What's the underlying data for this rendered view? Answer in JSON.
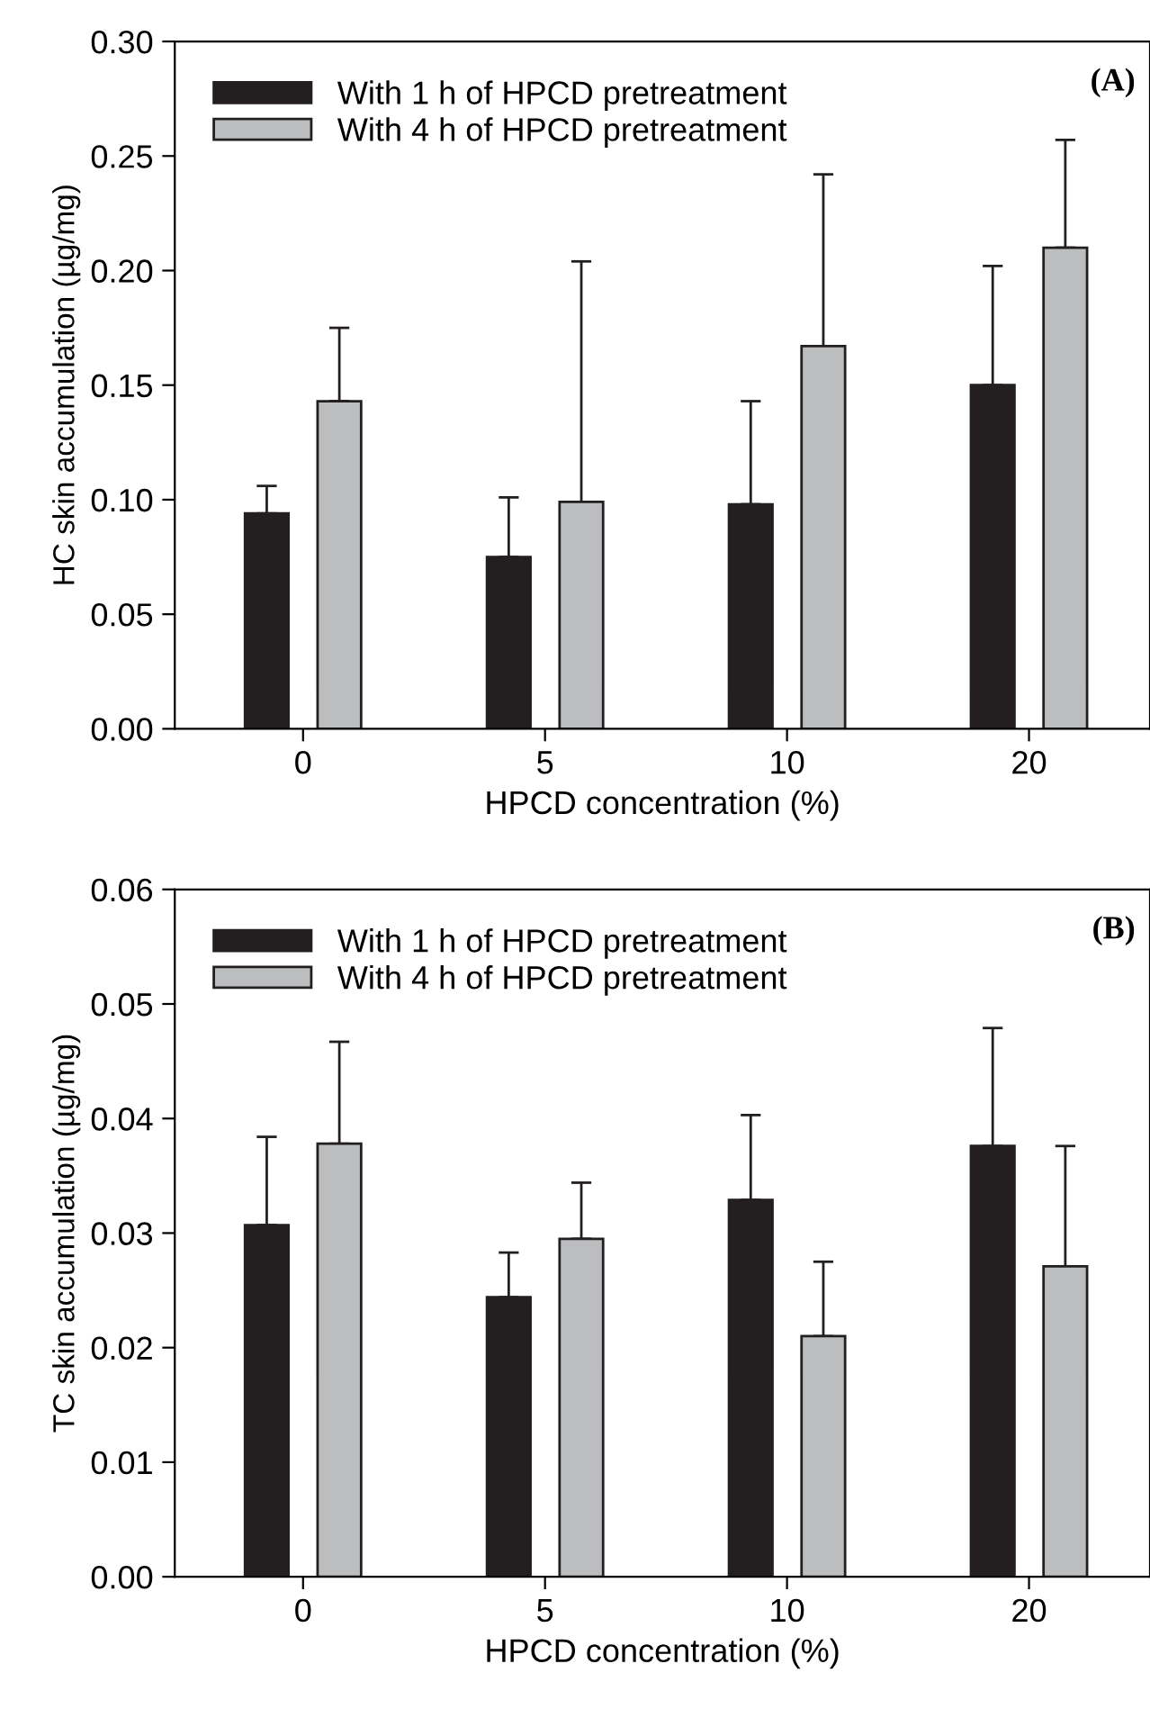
{
  "chart_data": [
    {
      "type": "bar",
      "categories": [
        "0",
        "5",
        "10",
        "20"
      ],
      "xlabel": "HPCD concentration (%)",
      "ylabel": "HC skin accumulation (µg/mg)",
      "ylim": [
        0,
        0.3
      ],
      "yticks": [
        {
          "value": 0,
          "label": "0.00"
        },
        {
          "value": 0.05,
          "label": "0.05"
        },
        {
          "value": 0.1,
          "label": "0.10"
        },
        {
          "value": 0.15,
          "label": "0.15"
        },
        {
          "value": 0.2,
          "label": "0.20"
        },
        {
          "value": 0.25,
          "label": "0.25"
        },
        {
          "value": 0.3,
          "label": "0.30"
        }
      ],
      "legend": "top left",
      "grid": false,
      "annotations": [
        "(A)"
      ],
      "series": [
        {
          "name": "With 1 h of HPCD pretreatment",
          "color": "#231f20",
          "values": [
            0.094,
            0.075,
            0.098,
            0.15
          ],
          "errors": [
            [
              0.094,
              0.106
            ],
            [
              0.075,
              0.101
            ],
            [
              0.098,
              0.143
            ],
            [
              0.15,
              0.202
            ]
          ]
        },
        {
          "name": "With 4 h of HPCD pretreatment",
          "color": "#bcbdbf",
          "values": [
            0.143,
            0.099,
            0.167,
            0.21
          ],
          "errors": [
            [
              0.143,
              0.175
            ],
            [
              0.099,
              0.204
            ],
            [
              0.167,
              0.242
            ],
            [
              0.21,
              0.257
            ]
          ]
        }
      ]
    },
    {
      "type": "bar",
      "categories": [
        "0",
        "5",
        "10",
        "20"
      ],
      "xlabel": "HPCD concentration (%)",
      "ylabel": "TC skin accumulation (µg/mg)",
      "ylim": [
        0,
        0.06
      ],
      "yticks": [
        {
          "value": 0,
          "label": "0.00"
        },
        {
          "value": 0.01,
          "label": "0.01"
        },
        {
          "value": 0.02,
          "label": "0.02"
        },
        {
          "value": 0.03,
          "label": "0.03"
        },
        {
          "value": 0.04,
          "label": "0.04"
        },
        {
          "value": 0.05,
          "label": "0.05"
        },
        {
          "value": 0.06,
          "label": "0.06"
        }
      ],
      "legend": "top left",
      "grid": false,
      "annotations": [
        "(B)"
      ],
      "series": [
        {
          "name": "With 1 h of HPCD pretreatment",
          "color": "#231f20",
          "values": [
            0.0307,
            0.0244,
            0.0329,
            0.0376
          ],
          "errors": [
            [
              0.0307,
              0.0384
            ],
            [
              0.0244,
              0.0283
            ],
            [
              0.0329,
              0.0403
            ],
            [
              0.0376,
              0.0479
            ]
          ]
        },
        {
          "name": "With 4 h of HPCD pretreatment",
          "color": "#bcbdbf",
          "values": [
            0.0378,
            0.0295,
            0.021,
            0.0271
          ],
          "errors": [
            [
              0.0378,
              0.0467
            ],
            [
              0.0295,
              0.0344
            ],
            [
              0.021,
              0.0275
            ],
            [
              0.0271,
              0.0376
            ]
          ]
        }
      ]
    }
  ]
}
